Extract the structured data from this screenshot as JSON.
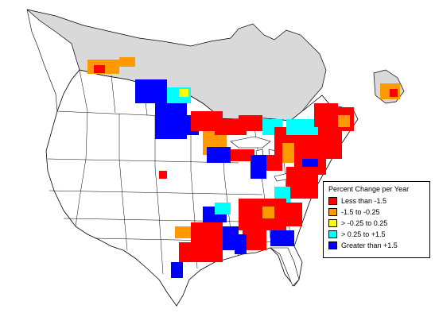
{
  "colors": {
    "background": "#ffffff",
    "canada_north": "#d9d9d9",
    "land": "#ffffff",
    "boundary": "#000000"
  },
  "legend": {
    "title": "Percent Change per Year",
    "items": [
      {
        "label": "Less than -1.5",
        "color": "#ff0000"
      },
      {
        "label": "-1.5 to -0.25",
        "color": "#ff9900"
      },
      {
        "label": "> -0.25 to 0.25",
        "color": "#ffff00"
      },
      {
        "label": "> 0.25 to +1.5",
        "color": "#00ffff"
      },
      {
        "label": "Greater than +1.5",
        "color": "#0000ff"
      }
    ]
  }
}
